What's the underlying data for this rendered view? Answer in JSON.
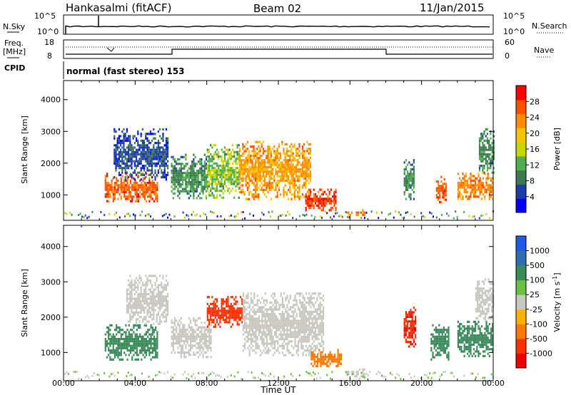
{
  "header": {
    "station": "Hankasalmi (fitACF)",
    "beam": "Beam 02",
    "date": "11/Jan/2015"
  },
  "top_panels": {
    "nsky_label": "N.Sky",
    "nsearch_label": "N.Search",
    "sky_ticks": [
      "10^5",
      "10^0"
    ],
    "search_ticks": [
      "10^5",
      "10^0"
    ],
    "freq_label_line1": "Freq.",
    "freq_label_line2": "[MHz]",
    "freq_ticks": [
      "18",
      "8"
    ],
    "nave_label": "Nave",
    "nave_ticks": [
      "60",
      "0"
    ],
    "cpid_label": "CPID",
    "mode_text": "normal (fast stereo) 153"
  },
  "colors": {
    "power_scale": [
      "#0000ff",
      "#1e3caa",
      "#3c7a50",
      "#4fae4f",
      "#c9d600",
      "#f5c400",
      "#ff8c00",
      "#ff5000",
      "#ff0000"
    ],
    "velocity_scale": [
      "#1e5ae6",
      "#2f6fb0",
      "#3a8a5a",
      "#6ac040",
      "#c8c8c0",
      "#ffb000",
      "#ff7800",
      "#ff3000",
      "#ee0000"
    ]
  },
  "chart_data": [
    {
      "type": "heatmap",
      "name": "power",
      "xlabel": "Time UT",
      "ylabel": "Slant Range [km]",
      "x_range_hours": [
        0,
        24
      ],
      "ylim": [
        200,
        4600
      ],
      "x_ticks": [
        "00:00",
        "04:00",
        "08:00",
        "12:00",
        "16:00",
        "20:00",
        "00:00"
      ],
      "y_ticks": [
        "1000",
        "2000",
        "3000",
        "4000"
      ],
      "colorbar_label": "Power [dB]",
      "colorbar_ticks": [
        "4",
        "8",
        "12",
        "16",
        "20",
        "24",
        "28"
      ],
      "regions": [
        {
          "t0": 2.3,
          "t1": 5.2,
          "r0": 800,
          "r1": 1700,
          "value": 26
        },
        {
          "t0": 2.8,
          "t1": 5.8,
          "r0": 1500,
          "r1": 3100,
          "value": 6
        },
        {
          "t0": 6.0,
          "t1": 8.0,
          "r0": 900,
          "r1": 2300,
          "value": 10
        },
        {
          "t0": 8.0,
          "t1": 9.8,
          "r0": 900,
          "r1": 2600,
          "value": 14
        },
        {
          "t0": 9.8,
          "t1": 13.8,
          "r0": 900,
          "r1": 2700,
          "value": 22
        },
        {
          "t0": 13.5,
          "t1": 15.2,
          "r0": 500,
          "r1": 1200,
          "value": 28
        },
        {
          "t0": 15.8,
          "t1": 16.8,
          "r0": 350,
          "r1": 550,
          "value": 24
        },
        {
          "t0": 19.0,
          "t1": 19.6,
          "r0": 900,
          "r1": 2200,
          "value": 10
        },
        {
          "t0": 20.8,
          "t1": 21.4,
          "r0": 800,
          "r1": 1600,
          "value": 26
        },
        {
          "t0": 22.0,
          "t1": 24.0,
          "r0": 900,
          "r1": 1700,
          "value": 24
        },
        {
          "t0": 23.2,
          "t1": 24.0,
          "r0": 1700,
          "r1": 3100,
          "value": 10
        }
      ]
    },
    {
      "type": "heatmap",
      "name": "velocity",
      "xlabel": "Time UT",
      "ylabel": "Slant Range [km]",
      "x_range_hours": [
        0,
        24
      ],
      "ylim": [
        200,
        4600
      ],
      "x_ticks": [
        "00:00",
        "04:00",
        "08:00",
        "12:00",
        "16:00",
        "20:00",
        "00:00"
      ],
      "y_ticks": [
        "1000",
        "2000",
        "3000",
        "4000"
      ],
      "colorbar_label": "Velocity [m s^-1]",
      "colorbar_ticks": [
        "1000",
        "500",
        "100",
        "25",
        "-25",
        "-100",
        "-500",
        "-1000"
      ],
      "regions": [
        {
          "t0": 2.3,
          "t1": 5.2,
          "r0": 800,
          "r1": 1800,
          "value": 120
        },
        {
          "t0": 3.5,
          "t1": 5.8,
          "r0": 1800,
          "r1": 3200,
          "value": 0
        },
        {
          "t0": 6.0,
          "t1": 8.2,
          "r0": 900,
          "r1": 2000,
          "value": 0
        },
        {
          "t0": 8.0,
          "t1": 10.0,
          "r0": 1700,
          "r1": 2600,
          "value": -400
        },
        {
          "t0": 10.0,
          "t1": 14.5,
          "r0": 900,
          "r1": 2700,
          "value": 0
        },
        {
          "t0": 13.8,
          "t1": 15.5,
          "r0": 600,
          "r1": 1100,
          "value": -150
        },
        {
          "t0": 15.8,
          "t1": 16.8,
          "r0": 350,
          "r1": 550,
          "value": 0
        },
        {
          "t0": 19.0,
          "t1": 19.7,
          "r0": 1200,
          "r1": 2300,
          "value": -600
        },
        {
          "t0": 20.5,
          "t1": 21.5,
          "r0": 800,
          "r1": 1800,
          "value": 200
        },
        {
          "t0": 22.0,
          "t1": 24.0,
          "r0": 900,
          "r1": 1900,
          "value": 120
        },
        {
          "t0": 23.0,
          "t1": 24.0,
          "r0": 1900,
          "r1": 3100,
          "value": 0
        }
      ]
    }
  ]
}
